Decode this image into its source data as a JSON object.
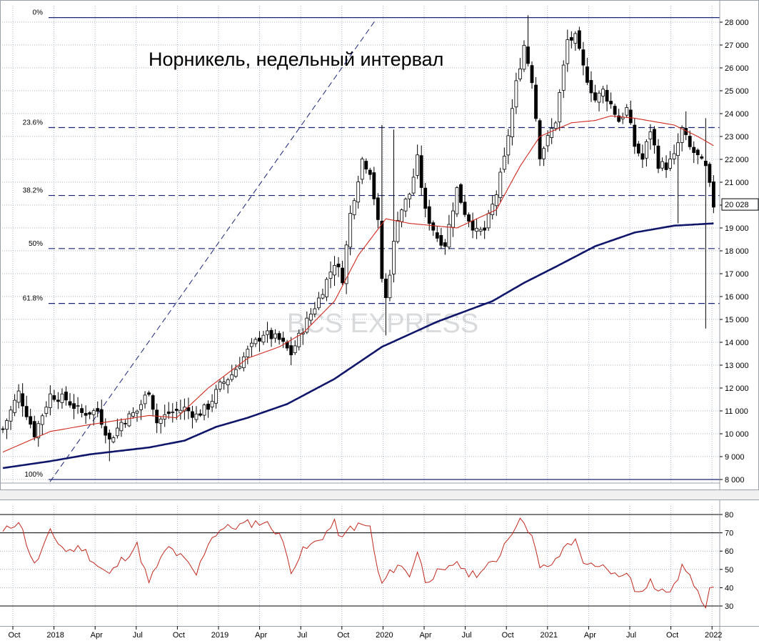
{
  "chart_data": [
    {
      "type": "candlestick",
      "title": "Норникель, недельный интервал",
      "watermark": "BCS EXPRESS",
      "ylim": [
        8000,
        28400
      ],
      "y_ticks": [
        "28 000",
        "27 000",
        "26 000",
        "25 000",
        "24 000",
        "23 000",
        "22 000",
        "21 000",
        "20 000",
        "19 000",
        "18 000",
        "17 000",
        "16 000",
        "15 000",
        "14 000",
        "13 000",
        "12 000",
        "11 000",
        "10 000",
        "9 000",
        "8 000"
      ],
      "last_price_label": "20 028",
      "last_price": 20028,
      "x_ticks": [
        "Oct",
        "2018",
        "Apr",
        "Jul",
        "Oct",
        "2019",
        "Apr",
        "Jul",
        "Oct",
        "2020",
        "Apr",
        "Jul",
        "Oct",
        "2021",
        "Apr",
        "Jul",
        "Oct",
        "2022"
      ],
      "fibonacci": [
        {
          "label": "0%",
          "value": 28200
        },
        {
          "label": "23.6%",
          "value": 23390
        },
        {
          "label": "38.2%",
          "value": 20420
        },
        {
          "label": "50%",
          "value": 18100
        },
        {
          "label": "61.8%",
          "value": 15700
        },
        {
          "label": "100%",
          "value": 8000
        }
      ],
      "keypoints": [
        [
          0,
          10200
        ],
        [
          4,
          11800
        ],
        [
          8,
          10000
        ],
        [
          12,
          11700
        ],
        [
          16,
          11500
        ],
        [
          20,
          10900
        ],
        [
          24,
          11000
        ],
        [
          27,
          9700
        ],
        [
          30,
          10500
        ],
        [
          34,
          11000
        ],
        [
          37,
          11900
        ],
        [
          39,
          10500
        ],
        [
          42,
          10900
        ],
        [
          46,
          11100
        ],
        [
          49,
          10800
        ],
        [
          52,
          11200
        ],
        [
          55,
          12100
        ],
        [
          58,
          12600
        ],
        [
          62,
          13600
        ],
        [
          66,
          14400
        ],
        [
          70,
          14100
        ],
        [
          73,
          13500
        ],
        [
          76,
          14600
        ],
        [
          80,
          15900
        ],
        [
          84,
          17500
        ],
        [
          86,
          16800
        ],
        [
          88,
          19600
        ],
        [
          91,
          22000
        ],
        [
          93,
          21500
        ],
        [
          95,
          19200
        ],
        [
          96,
          16800
        ],
        [
          97,
          15900
        ],
        [
          100,
          19500
        ],
        [
          103,
          20500
        ],
        [
          105,
          22000
        ],
        [
          107,
          19700
        ],
        [
          110,
          18600
        ],
        [
          112,
          18300
        ],
        [
          115,
          20700
        ],
        [
          117,
          19700
        ],
        [
          120,
          18800
        ],
        [
          122,
          18900
        ],
        [
          125,
          20500
        ],
        [
          127,
          22000
        ],
        [
          130,
          25300
        ],
        [
          132,
          27000
        ],
        [
          134,
          25500
        ],
        [
          136,
          22200
        ],
        [
          138,
          22900
        ],
        [
          140,
          23700
        ],
        [
          143,
          27200
        ],
        [
          145,
          27300
        ],
        [
          147,
          26000
        ],
        [
          150,
          24600
        ],
        [
          152,
          25000
        ],
        [
          154,
          24400
        ],
        [
          156,
          23700
        ],
        [
          158,
          24200
        ],
        [
          160,
          22600
        ],
        [
          162,
          22000
        ],
        [
          164,
          23300
        ],
        [
          166,
          21800
        ],
        [
          168,
          21700
        ],
        [
          170,
          22100
        ],
        [
          172,
          23300
        ],
        [
          174,
          22500
        ],
        [
          176,
          22100
        ],
        [
          178,
          21600
        ],
        [
          179,
          20800
        ],
        [
          180,
          20000
        ]
      ],
      "overrides": [
        {
          "i": 27,
          "low": 8800
        },
        {
          "i": 96,
          "high": 23500
        },
        {
          "i": 97,
          "low": 14300
        },
        {
          "i": 99,
          "high": 23300
        },
        {
          "i": 133,
          "high": 28300
        },
        {
          "i": 144,
          "high": 27600
        },
        {
          "i": 171,
          "low": 19200
        },
        {
          "i": 173,
          "high": 24100
        },
        {
          "i": 178,
          "low": 14600,
          "high": 23800
        }
      ],
      "series": [
        {
          "kind": "ma_short",
          "color": "#d0281e",
          "values": [
            [
              0,
              9200
            ],
            [
              12,
              10100
            ],
            [
              22,
              10400
            ],
            [
              37,
              10800
            ],
            [
              44,
              10700
            ],
            [
              52,
              12000
            ],
            [
              62,
              13300
            ],
            [
              70,
              13800
            ],
            [
              76,
              14400
            ],
            [
              84,
              15800
            ],
            [
              90,
              17800
            ],
            [
              97,
              19400
            ],
            [
              103,
              19200
            ],
            [
              115,
              19000
            ],
            [
              125,
              19800
            ],
            [
              131,
              21700
            ],
            [
              136,
              23000
            ],
            [
              144,
              23600
            ],
            [
              150,
              23700
            ],
            [
              154,
              23900
            ],
            [
              160,
              23800
            ],
            [
              170,
              23500
            ],
            [
              176,
              23000
            ],
            [
              180,
              22600
            ]
          ]
        },
        {
          "kind": "ma_long",
          "color": "#10166a",
          "values": [
            [
              0,
              8500
            ],
            [
              12,
              8800
            ],
            [
              22,
              9100
            ],
            [
              37,
              9400
            ],
            [
              46,
              9700
            ],
            [
              54,
              10300
            ],
            [
              62,
              10700
            ],
            [
              72,
              11300
            ],
            [
              84,
              12400
            ],
            [
              96,
              13800
            ],
            [
              110,
              14900
            ],
            [
              124,
              15800
            ],
            [
              132,
              16600
            ],
            [
              140,
              17300
            ],
            [
              150,
              18200
            ],
            [
              160,
              18800
            ],
            [
              170,
              19100
            ],
            [
              180,
              19200
            ]
          ]
        }
      ]
    },
    {
      "type": "line",
      "y_ticks": [
        "80",
        "70",
        "60",
        "50",
        "40",
        "30"
      ],
      "ylim": [
        29,
        80
      ],
      "levels": [
        80,
        70,
        30
      ],
      "color": "#c0281e",
      "keypoints": [
        [
          0,
          70
        ],
        [
          4,
          77
        ],
        [
          8,
          52
        ],
        [
          12,
          70
        ],
        [
          16,
          60
        ],
        [
          20,
          62
        ],
        [
          24,
          52
        ],
        [
          27,
          47
        ],
        [
          30,
          55
        ],
        [
          34,
          63
        ],
        [
          37,
          42
        ],
        [
          39,
          52
        ],
        [
          42,
          62
        ],
        [
          46,
          55
        ],
        [
          49,
          47
        ],
        [
          52,
          65
        ],
        [
          55,
          72
        ],
        [
          58,
          73
        ],
        [
          62,
          75
        ],
        [
          66,
          76
        ],
        [
          70,
          70
        ],
        [
          73,
          50
        ],
        [
          76,
          60
        ],
        [
          80,
          66
        ],
        [
          84,
          75
        ],
        [
          86,
          66
        ],
        [
          88,
          73
        ],
        [
          91,
          74
        ],
        [
          93,
          73
        ],
        [
          95,
          48
        ],
        [
          96,
          42
        ],
        [
          97,
          45
        ],
        [
          100,
          53
        ],
        [
          103,
          47
        ],
        [
          105,
          60
        ],
        [
          107,
          44
        ],
        [
          110,
          48
        ],
        [
          112,
          48
        ],
        [
          115,
          55
        ],
        [
          117,
          48
        ],
        [
          120,
          48
        ],
        [
          122,
          50
        ],
        [
          125,
          55
        ],
        [
          127,
          64
        ],
        [
          130,
          75
        ],
        [
          132,
          77
        ],
        [
          134,
          68
        ],
        [
          136,
          50
        ],
        [
          138,
          52
        ],
        [
          140,
          54
        ],
        [
          143,
          65
        ],
        [
          145,
          65
        ],
        [
          147,
          55
        ],
        [
          150,
          50
        ],
        [
          152,
          51
        ],
        [
          154,
          49
        ],
        [
          156,
          45
        ],
        [
          158,
          50
        ],
        [
          160,
          38
        ],
        [
          162,
          40
        ],
        [
          164,
          44
        ],
        [
          166,
          38
        ],
        [
          168,
          38
        ],
        [
          170,
          40
        ],
        [
          172,
          52
        ],
        [
          174,
          45
        ],
        [
          176,
          40
        ],
        [
          178,
          29
        ],
        [
          179,
          42
        ],
        [
          180,
          38
        ]
      ]
    }
  ]
}
